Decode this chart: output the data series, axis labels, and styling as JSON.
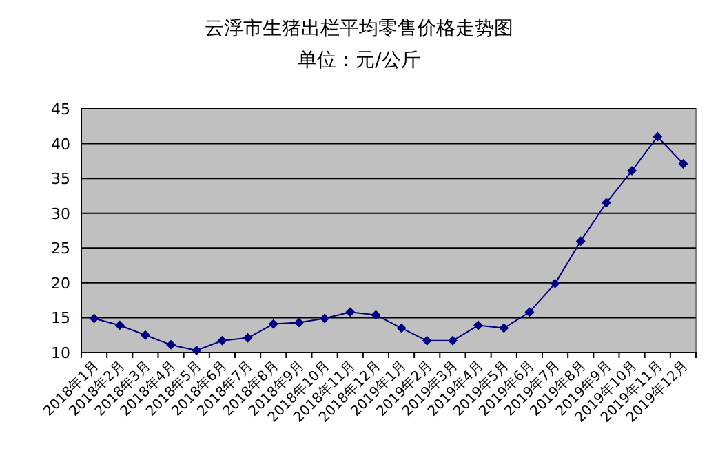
{
  "chart_data": {
    "type": "line",
    "title": "云浮市生猪出栏平均零售价格走势图",
    "subtitle": "单位：元/公斤",
    "categories": [
      "2018年1月",
      "2018年2月",
      "2018年3月",
      "2018年4月",
      "2018年5月",
      "2018年6月",
      "2018年7月",
      "2018年8月",
      "2018年9月",
      "2018年10月",
      "2018年11月",
      "2018年12月",
      "2019年1月",
      "2019年2月",
      "2019年3月",
      "2019年4月",
      "2019年5月",
      "2019年6月",
      "2019年7月",
      "2019年8月",
      "2019年9月",
      "2019年10月",
      "2019年11月",
      "2019年12月"
    ],
    "series": [
      {
        "color": "#000080",
        "values": [
          14.9,
          13.9,
          12.5,
          11.1,
          10.3,
          11.7,
          12.1,
          14.1,
          14.3,
          14.9,
          15.8,
          15.4,
          13.5,
          11.7,
          11.7,
          13.9,
          13.5,
          15.8,
          19.9,
          26.0,
          31.5,
          36.1,
          41.0,
          37.1
        ]
      }
    ],
    "ylim": [
      10,
      45
    ],
    "yticks": [
      10,
      15,
      20,
      25,
      30,
      35,
      40,
      45
    ],
    "grid": "y",
    "marker": "diamond",
    "line_style": "solid"
  }
}
